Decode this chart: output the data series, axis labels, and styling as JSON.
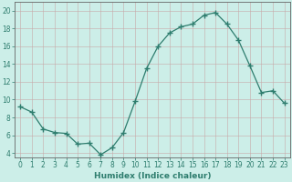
{
  "x": [
    0,
    1,
    2,
    3,
    4,
    5,
    6,
    7,
    8,
    9,
    10,
    11,
    12,
    13,
    14,
    15,
    16,
    17,
    18,
    19,
    20,
    21,
    22,
    23
  ],
  "y": [
    9.2,
    8.6,
    6.7,
    6.3,
    6.2,
    5.0,
    5.1,
    3.8,
    4.6,
    6.3,
    9.8,
    13.5,
    16.0,
    17.5,
    18.2,
    18.5,
    19.5,
    19.8,
    18.5,
    16.7,
    13.8,
    10.8,
    11.0,
    9.6
  ],
  "line_color": "#2e7d6e",
  "marker": "+",
  "marker_size": 4,
  "bg_color": "#cceee8",
  "grid_color": "#c8a8a8",
  "xlabel": "Humidex (Indice chaleur)",
  "ylim": [
    3.5,
    21
  ],
  "xlim": [
    -0.5,
    23.5
  ],
  "yticks": [
    4,
    6,
    8,
    10,
    12,
    14,
    16,
    18,
    20
  ],
  "xticks": [
    0,
    1,
    2,
    3,
    4,
    5,
    6,
    7,
    8,
    9,
    10,
    11,
    12,
    13,
    14,
    15,
    16,
    17,
    18,
    19,
    20,
    21,
    22,
    23
  ],
  "label_fontsize": 6.5,
  "tick_fontsize": 5.5
}
